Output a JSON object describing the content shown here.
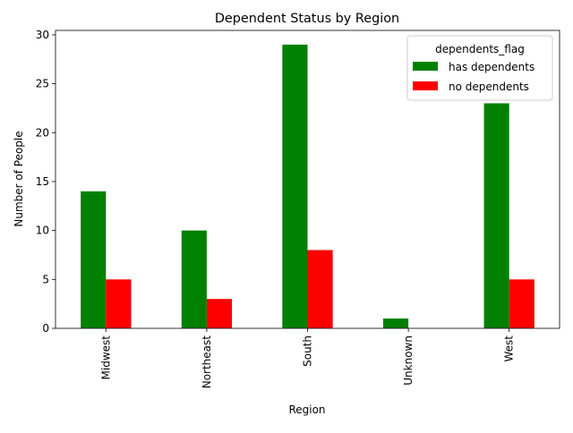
{
  "chart_data": {
    "type": "bar",
    "title": "Dependent Status by Region",
    "xlabel": "Region",
    "ylabel": "Number of People",
    "categories": [
      "Midwest",
      "Northeast",
      "South",
      "Unknown",
      "West"
    ],
    "ylim": [
      0,
      30.45
    ],
    "yticks": [
      0,
      5,
      10,
      15,
      20,
      25,
      30
    ],
    "legend": {
      "title": "dependents_flag",
      "position": "top-right"
    },
    "series": [
      {
        "name": "has dependents",
        "color": "#008000",
        "values": [
          14,
          10,
          29,
          1,
          23
        ]
      },
      {
        "name": "no dependents",
        "color": "#ff0000",
        "values": [
          5,
          3,
          8,
          0,
          5
        ]
      }
    ]
  }
}
